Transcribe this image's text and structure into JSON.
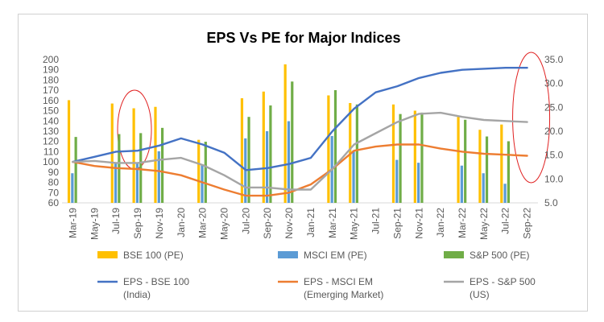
{
  "chart_data": {
    "type": "bar",
    "title": "EPS Vs PE for Major Indices",
    "categories": [
      "Mar-19",
      "May-19",
      "Jul-19",
      "Sep-19",
      "Nov-19",
      "Jan-20",
      "Mar-20",
      "May-20",
      "Jul-20",
      "Sep-20",
      "Nov-20",
      "Jan-21",
      "Mar-21",
      "May-21",
      "Jul-21",
      "Sep-21",
      "Nov-21",
      "Jan-22",
      "Mar-22",
      "May-22",
      "Jul-22",
      "Sep-22"
    ],
    "y_left": {
      "min": 60,
      "max": 200,
      "step": 10,
      "labels": [
        "60",
        "70",
        "80",
        "90",
        "100",
        "110",
        "120",
        "130",
        "140",
        "150",
        "160",
        "170",
        "180",
        "190",
        "200"
      ]
    },
    "y_right": {
      "min": 5.0,
      "max": 35.0,
      "step": 5.0,
      "labels": [
        "5.0",
        "10.0",
        "15.0",
        "20.0",
        "25.0",
        "30.0",
        "35.0"
      ]
    },
    "bar_series": [
      {
        "name": "BSE 100 (PE)",
        "color": "#FFC000",
        "axis": "right",
        "points": [
          {
            "x": "Mar-19",
            "v": 26.5
          },
          {
            "x": "Jul-19",
            "v": 25.8
          },
          {
            "x": "Sep-19",
            "v": 24.8
          },
          {
            "x": "Nov-19",
            "v": 25.1
          },
          {
            "x": "Mar-20",
            "v": 18.2
          },
          {
            "x": "Jul-20",
            "v": 26.9
          },
          {
            "x": "Sep-20",
            "v": 28.3
          },
          {
            "x": "Nov-20",
            "v": 34.0
          },
          {
            "x": "Mar-21",
            "v": 27.5
          },
          {
            "x": "May-21",
            "v": 25.9
          },
          {
            "x": "Sep-21",
            "v": 25.6
          },
          {
            "x": "Nov-21",
            "v": 24.3
          },
          {
            "x": "Mar-22",
            "v": 23.0
          },
          {
            "x": "May-22",
            "v": 20.3
          },
          {
            "x": "Jul-22",
            "v": 21.4
          }
        ]
      },
      {
        "name": "MSCI EM (PE)",
        "color": "#5B9BD5",
        "axis": "right",
        "points": [
          {
            "x": "Mar-19",
            "v": 11.2
          },
          {
            "x": "Jul-19",
            "v": 13.5
          },
          {
            "x": "Sep-19",
            "v": 13.4
          },
          {
            "x": "Nov-19",
            "v": 15.8
          },
          {
            "x": "Mar-20",
            "v": 13.0
          },
          {
            "x": "Jul-20",
            "v": 18.5
          },
          {
            "x": "Sep-20",
            "v": 20.0
          },
          {
            "x": "Nov-20",
            "v": 22.1
          },
          {
            "x": "Mar-21",
            "v": 19.0
          },
          {
            "x": "May-21",
            "v": 16.0
          },
          {
            "x": "Sep-21",
            "v": 14.0
          },
          {
            "x": "Nov-21",
            "v": 13.4
          },
          {
            "x": "Mar-22",
            "v": 12.8
          },
          {
            "x": "May-22",
            "v": 11.2
          },
          {
            "x": "Jul-22",
            "v": 9.0
          }
        ]
      },
      {
        "name": "S&P 500 (PE)",
        "color": "#70AD47",
        "axis": "right",
        "points": [
          {
            "x": "Mar-19",
            "v": 18.8
          },
          {
            "x": "Jul-19",
            "v": 19.4
          },
          {
            "x": "Sep-19",
            "v": 19.6
          },
          {
            "x": "Nov-19",
            "v": 20.7
          },
          {
            "x": "Mar-20",
            "v": 17.8
          },
          {
            "x": "Jul-20",
            "v": 23.0
          },
          {
            "x": "Sep-20",
            "v": 25.4
          },
          {
            "x": "Nov-20",
            "v": 30.4
          },
          {
            "x": "Mar-21",
            "v": 28.6
          },
          {
            "x": "May-21",
            "v": 25.6
          },
          {
            "x": "Sep-21",
            "v": 23.6
          },
          {
            "x": "Nov-21",
            "v": 23.9
          },
          {
            "x": "Mar-22",
            "v": 22.4
          },
          {
            "x": "May-22",
            "v": 18.9
          },
          {
            "x": "Jul-22",
            "v": 17.9
          }
        ]
      }
    ],
    "line_series": [
      {
        "name": "EPS - BSE 100",
        "sublabel": "(India)",
        "color": "#4472C4",
        "axis": "left",
        "values": [
          100,
          105,
          110,
          111,
          116,
          123,
          117,
          109,
          92,
          94,
          98,
          104,
          130,
          152,
          168,
          174,
          182,
          187,
          190,
          191,
          192,
          192
        ]
      },
      {
        "name": "EPS - MSCI EM",
        "sublabel": "(Emerging Market)",
        "color": "#ED7D31",
        "axis": "left",
        "values": [
          100,
          96,
          94,
          93,
          91,
          87,
          80,
          73,
          67,
          67,
          70,
          78,
          93,
          111,
          115,
          117,
          117,
          113,
          110,
          108,
          107,
          106
        ]
      },
      {
        "name": "EPS - S&P 500",
        "sublabel": "(US)",
        "color": "#A5A5A5",
        "axis": "left",
        "values": [
          100,
          101,
          99,
          99,
          102,
          104,
          97,
          87,
          75,
          75,
          73,
          73,
          93,
          117,
          128,
          139,
          147,
          148,
          144,
          141,
          140,
          139
        ]
      }
    ],
    "annotations": [
      {
        "shape": "ellipse",
        "color": "#E02020",
        "around": "Sep-19"
      },
      {
        "shape": "ellipse",
        "color": "#E02020",
        "around": "Sep-22"
      }
    ],
    "legend": "bottom",
    "grid": false
  }
}
